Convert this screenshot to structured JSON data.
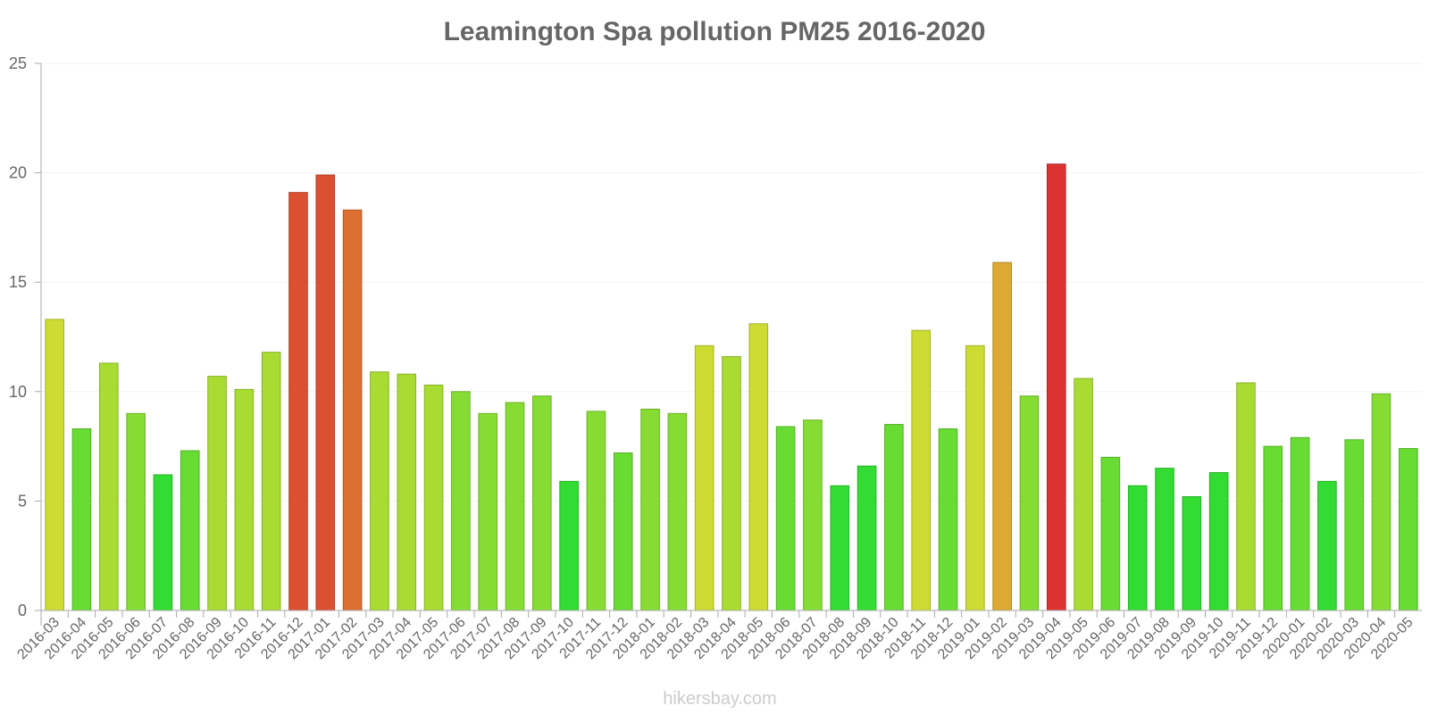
{
  "chart_data": {
    "type": "bar",
    "title": "Leamington Spa pollution PM25 2016-2020",
    "xlabel": "",
    "ylabel": "",
    "ylim": [
      0,
      25
    ],
    "yticks": [
      0,
      5,
      10,
      15,
      20,
      25
    ],
    "grid": true,
    "categories": [
      "2016-03",
      "2016-04",
      "2016-05",
      "2016-06",
      "2016-07",
      "2016-08",
      "2016-09",
      "2016-10",
      "2016-11",
      "2016-12",
      "2017-01",
      "2017-02",
      "2017-03",
      "2017-04",
      "2017-05",
      "2017-06",
      "2017-07",
      "2017-08",
      "2017-09",
      "2017-10",
      "2017-11",
      "2017-12",
      "2018-01",
      "2018-02",
      "2018-03",
      "2018-04",
      "2018-05",
      "2018-06",
      "2018-07",
      "2018-08",
      "2018-09",
      "2018-10",
      "2018-11",
      "2018-12",
      "2019-01",
      "2019-02",
      "2019-03",
      "2019-04",
      "2019-05",
      "2019-06",
      "2019-07",
      "2019-08",
      "2019-09",
      "2019-10",
      "2019-11",
      "2019-12",
      "2020-01",
      "2020-02",
      "2020-03",
      "2020-04",
      "2020-05"
    ],
    "values": [
      13.3,
      8.3,
      11.3,
      9.0,
      6.2,
      7.3,
      10.7,
      10.1,
      11.8,
      19.1,
      19.9,
      18.3,
      10.9,
      10.8,
      10.3,
      10.0,
      9.0,
      9.5,
      9.8,
      5.9,
      9.1,
      7.2,
      9.2,
      9.0,
      12.1,
      11.6,
      13.1,
      8.4,
      8.7,
      5.7,
      6.6,
      8.5,
      12.8,
      8.3,
      12.1,
      15.9,
      9.8,
      20.4,
      10.6,
      7.0,
      5.7,
      6.5,
      5.2,
      6.3,
      10.4,
      7.5,
      7.9,
      5.9,
      7.8,
      9.9,
      7.4
    ],
    "colors": [
      "#cddc32",
      "#68dc32",
      "#a9dc32",
      "#86dc32",
      "#32dc32",
      "#68dc32",
      "#a9dc32",
      "#a9dc32",
      "#a9dc32",
      "#dc5032",
      "#dc5032",
      "#dc7032",
      "#a9dc32",
      "#a9dc32",
      "#a9dc32",
      "#86dc32",
      "#86dc32",
      "#86dc32",
      "#86dc32",
      "#32dc32",
      "#86dc32",
      "#68dc32",
      "#86dc32",
      "#86dc32",
      "#cddc32",
      "#a9dc32",
      "#cddc32",
      "#68dc32",
      "#86dc32",
      "#32dc32",
      "#32dc32",
      "#68dc32",
      "#cddc32",
      "#68dc32",
      "#cddc32",
      "#dca932",
      "#86dc32",
      "#dc3232",
      "#a9dc32",
      "#68dc32",
      "#32dc32",
      "#32dc32",
      "#32dc32",
      "#32dc32",
      "#a9dc32",
      "#68dc32",
      "#68dc32",
      "#32dc32",
      "#68dc32",
      "#86dc32",
      "#68dc32"
    ]
  },
  "watermark": "hikersbay.com"
}
